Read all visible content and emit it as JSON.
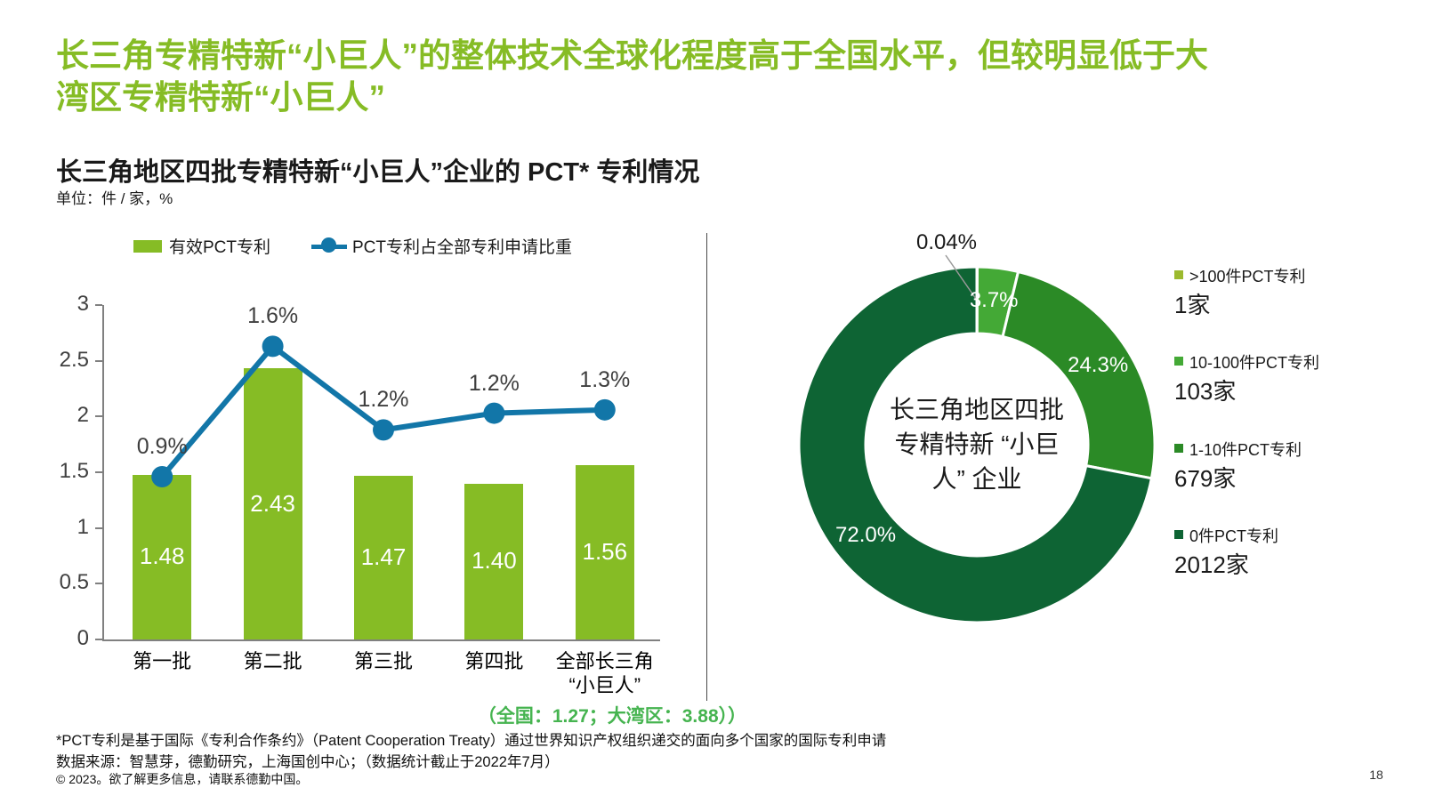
{
  "slide": {
    "title_line1": "长三角专精特新“小巨人”的整体技术全球化程度高于全国水平，但较明显低于大",
    "title_line2": "湾区专精特新“小巨人”",
    "chart_title": "长三角地区四批专精特新“小巨人”企业的 PCT* 专利情况",
    "unit_label": "单位：件 / 家，%",
    "footnote_pct": "*PCT专利是基于国际《专利合作条约》（Patent Cooperation Treaty）通过世界知识产权组织递交的面向多个国家的国际专利申请",
    "footnote_source": "数据来源：智慧芽，德勤研究，上海国创中心；（数据统计截止于2022年7月）",
    "copyright": "© 2023。欲了解更多信息，请联系德勤中国。",
    "page_number": "18",
    "accent_green": "#86BC25",
    "accent_blue": "#1276A8",
    "axis_gray": "#808080",
    "note_green": "#46B450"
  },
  "chart_data": [
    {
      "type": "bar",
      "subtype": "bar+line combo",
      "categories": [
        "第一批",
        "第二批",
        "第三批",
        "第四批",
        "全部长三角\n“小巨人”"
      ],
      "bar_series": {
        "name": "有效PCT专利",
        "color": "#86BC25",
        "values": [
          1.48,
          2.43,
          1.47,
          1.4,
          1.56
        ],
        "labels": [
          "1.48",
          "2.43",
          "1.47",
          "1.40",
          "1.56"
        ]
      },
      "line_series": {
        "name": "PCT专利占全部专利申请比重",
        "color": "#1276A8",
        "values_pct": [
          0.9,
          1.6,
          1.2,
          1.2,
          1.3
        ],
        "labels": [
          "0.9%",
          "1.6%",
          "1.2%",
          "1.2%",
          "1.3%"
        ],
        "plot_on_left_axis": [
          1.46,
          2.63,
          1.88,
          2.03,
          2.06
        ]
      },
      "ylim": [
        0,
        3
      ],
      "yticks": [
        "0",
        "0.5",
        "1",
        "1.5",
        "2",
        "2.5",
        "3"
      ],
      "grid": false,
      "legend_position": "top",
      "extra_note": "（全国：1.27；大湾区：3.88））"
    },
    {
      "type": "pie",
      "subtype": "donut",
      "center_label": "长三角地区四批\n专精特新 “小巨\n人” 企业",
      "slices": [
        {
          "label": ">100件PCT专利",
          "count_label": "1家",
          "pct": 0.04,
          "pct_label": "0.04%",
          "color": "#9CBA2E"
        },
        {
          "label": "10-100件PCT专利",
          "count_label": "103家",
          "pct": 3.7,
          "pct_label": "3.7%",
          "color": "#44A936"
        },
        {
          "label": "1-10件PCT专利",
          "count_label": "679家",
          "pct": 24.3,
          "pct_label": "24.3%",
          "color": "#2B8A26"
        },
        {
          "label": "0件PCT专利",
          "count_label": "2012家",
          "pct": 72.0,
          "pct_label": "72.0%",
          "color": "#0E6434"
        }
      ],
      "legend_position": "right"
    }
  ]
}
